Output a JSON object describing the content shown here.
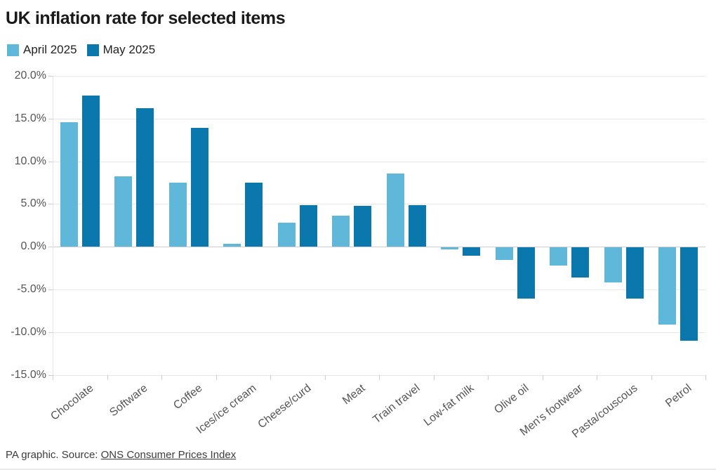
{
  "title": "UK inflation rate for selected items",
  "legend": {
    "items": [
      {
        "label": "April 2025",
        "color": "#5fb8da"
      },
      {
        "label": "May 2025",
        "color": "#0b78ad"
      }
    ]
  },
  "footer": {
    "text": "PA graphic. Source: ",
    "link_label": "ONS Consumer Prices Index"
  },
  "chart_data": {
    "type": "bar",
    "title": "UK inflation rate for selected items",
    "categories": [
      "Chocolate",
      "Software",
      "Coffee",
      "Ices/ice cream",
      "Cheese/curd",
      "Meat",
      "Train travel",
      "Low-fat milk",
      "Olive oil",
      "Men's footwear",
      "Pasta/couscous",
      "Petrol"
    ],
    "series": [
      {
        "name": "April 2025",
        "color": "#5fb8da",
        "values": [
          14.6,
          8.2,
          7.5,
          0.3,
          2.8,
          3.6,
          8.6,
          -0.2,
          -1.5,
          -2.1,
          -4.1,
          -9.0
        ]
      },
      {
        "name": "May 2025",
        "color": "#0b78ad",
        "values": [
          17.7,
          16.2,
          13.9,
          7.5,
          4.9,
          4.8,
          4.9,
          -1.0,
          -6.0,
          -3.5,
          -6.0,
          -10.9
        ]
      }
    ],
    "xlabel": "",
    "ylabel": "",
    "ylim": [
      -15,
      20
    ],
    "ytick_step": 5,
    "ytick_labels": [
      "20.0%",
      "15.0%",
      "10.0%",
      "5.0%",
      "0.0%",
      "-5.0%",
      "-10.0%",
      "-15.0%"
    ],
    "grid": true,
    "legend_position": "top-left"
  }
}
